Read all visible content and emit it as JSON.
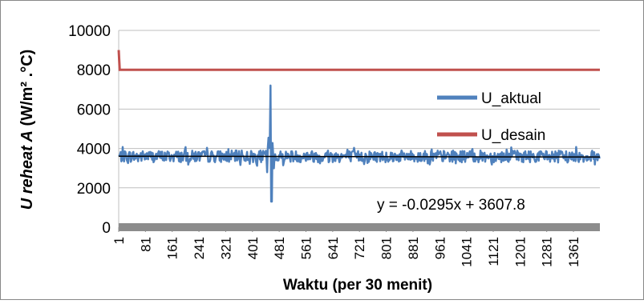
{
  "chart_data": {
    "type": "line",
    "title": "",
    "xlabel": "Waktu (per 30 menit)",
    "ylabel_italic": "U reheat A",
    "ylabel_rest": " (W/m² .°C)",
    "ylim": [
      0,
      10000
    ],
    "yticks": [
      0,
      2000,
      4000,
      6000,
      8000,
      10000
    ],
    "xlim": [
      1,
      1440
    ],
    "xtick_labels": [
      "1",
      "81",
      "161",
      "241",
      "321",
      "401",
      "481",
      "561",
      "641",
      "721",
      "801",
      "881",
      "961",
      "1041",
      "1121",
      "1201",
      "1281",
      "1361"
    ],
    "grid": "horizontal",
    "legend_placement": "right",
    "series": [
      {
        "name": "U_aktual",
        "color": "#4f81bd",
        "baseline": 3600,
        "noise_amplitude": 300,
        "spike": {
          "x": 455,
          "max": 7200,
          "min": 1300
        }
      },
      {
        "name": "U_desain",
        "color": "#c0504d",
        "values_description_points": [
          [
            1,
            9000
          ],
          [
            4,
            8000
          ],
          [
            1440,
            8000
          ]
        ]
      }
    ],
    "trendline": {
      "equation": "y = -0.0295x + 3607.8",
      "slope": -0.0295,
      "intercept": 3607.8,
      "color": "#000000"
    },
    "axis_band_color": "#8c8c8c"
  }
}
